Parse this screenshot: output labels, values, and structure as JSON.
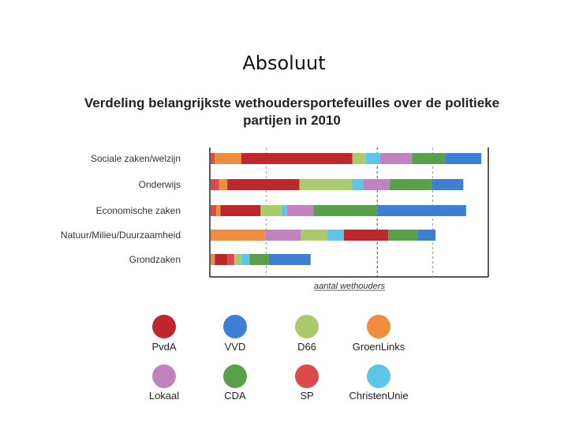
{
  "slide": {
    "title": "Absoluut"
  },
  "chart_data": {
    "type": "bar",
    "orientation": "horizontal",
    "stacked": true,
    "title": "Verdeling belangrijkste wethoudersportefeuilles over de politieke partijen in 2010",
    "xlabel": "aantal wethouders",
    "ylabel": "",
    "xlim": [
      0,
      100
    ],
    "categories": [
      "Sociale zaken/welzijn",
      "Onderwijs",
      "Economische zaken",
      "Natuur/Milieu/Duurzaamheid",
      "Grondzaken"
    ],
    "segments": [
      [
        [
          "SP",
          1.5
        ],
        [
          "GroenLinks",
          9.5
        ],
        [
          "PvdA",
          40
        ],
        [
          "D66",
          5
        ],
        [
          "ChristenUnie",
          5
        ],
        [
          "Lokaal",
          11.5
        ],
        [
          "CDA",
          12
        ],
        [
          "VVD",
          13
        ]
      ],
      [
        [
          "SP",
          3
        ],
        [
          "GroenLinks",
          3
        ],
        [
          "PvdA",
          26
        ],
        [
          "D66",
          19
        ],
        [
          "ChristenUnie",
          4
        ],
        [
          "Lokaal",
          9.5
        ],
        [
          "CDA",
          15
        ],
        [
          "VVD",
          11.5
        ]
      ],
      [
        [
          "SP",
          2
        ],
        [
          "GroenLinks",
          1.5
        ],
        [
          "PvdA",
          14.5
        ],
        [
          "D66",
          7.5
        ],
        [
          "ChristenUnie",
          2
        ],
        [
          "Lokaal",
          9.5
        ],
        [
          "CDA",
          23
        ],
        [
          "VVD",
          32
        ]
      ],
      [
        [
          "GroenLinks",
          19.5
        ],
        [
          "Lokaal",
          13
        ],
        [
          "D66",
          9.5
        ],
        [
          "ChristenUnie",
          6
        ],
        [
          "PvdA",
          16
        ],
        [
          "CDA",
          10.5
        ],
        [
          "VVD",
          6.5
        ]
      ],
      [
        [
          "GroenLinks",
          1.5
        ],
        [
          "PvdA",
          4.5
        ],
        [
          "SP",
          2.5
        ],
        [
          "D66",
          2.5
        ],
        [
          "ChristenUnie",
          3
        ],
        [
          "CDA",
          7
        ],
        [
          "VVD",
          15
        ]
      ]
    ],
    "gridlines": [
      20,
      60,
      80
    ],
    "legend": {
      "placement": "bottom",
      "items": [
        {
          "name": "PvdA",
          "color": "#c0272d"
        },
        {
          "name": "VVD",
          "color": "#3c7fd4"
        },
        {
          "name": "D66",
          "color": "#a9cb6b"
        },
        {
          "name": "GroenLinks",
          "color": "#ef8c3e"
        },
        {
          "name": "Lokaal",
          "color": "#c183bf"
        },
        {
          "name": "CDA",
          "color": "#5a9f4a"
        },
        {
          "name": "SP",
          "color": "#dc4a4a"
        },
        {
          "name": "ChristenUnie",
          "color": "#5dc5e8"
        }
      ]
    }
  }
}
